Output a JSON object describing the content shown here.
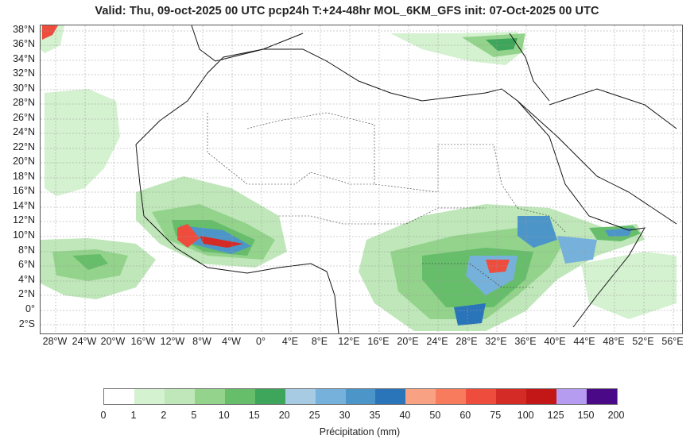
{
  "title": "Valid: Thu, 09-oct-2025   00 UTC   pcp24h   T:+24-48hr   MOL_6KM_GFS   init: 07-Oct-2025    00 UTC",
  "lat_labels": [
    "38°N",
    "36°N",
    "34°N",
    "32°N",
    "30°N",
    "28°N",
    "26°N",
    "24°N",
    "22°N",
    "20°N",
    "18°N",
    "16°N",
    "14°N",
    "12°N",
    "10°N",
    "8°N",
    "6°N",
    "4°N",
    "2°N",
    "0°",
    "2°S"
  ],
  "lon_labels": [
    "28°W",
    "24°W",
    "20°W",
    "16°W",
    "12°W",
    "8°W",
    "4°W",
    "0°",
    "4°E",
    "8°E",
    "12°E",
    "16°E",
    "20°E",
    "24°E",
    "28°E",
    "32°E",
    "36°E",
    "40°E",
    "44°E",
    "48°E",
    "52°E",
    "56°E"
  ],
  "colorbar": {
    "ticks": [
      "0",
      "1",
      "2",
      "5",
      "10",
      "15",
      "20",
      "25",
      "30",
      "35",
      "40",
      "50",
      "60",
      "75",
      "100",
      "125",
      "150",
      "200"
    ],
    "colors": [
      "#ffffff",
      "#d4f1d0",
      "#bfe7b9",
      "#93d38b",
      "#66be6b",
      "#3da65a",
      "#a7cbe3",
      "#76b1db",
      "#4c95c9",
      "#2a74ba",
      "#f9a183",
      "#f77b5c",
      "#ee4d3e",
      "#d52b26",
      "#c31717",
      "#b59cf0",
      "#4a0a87"
    ],
    "unit_label": "Précipitation (mm)"
  }
}
